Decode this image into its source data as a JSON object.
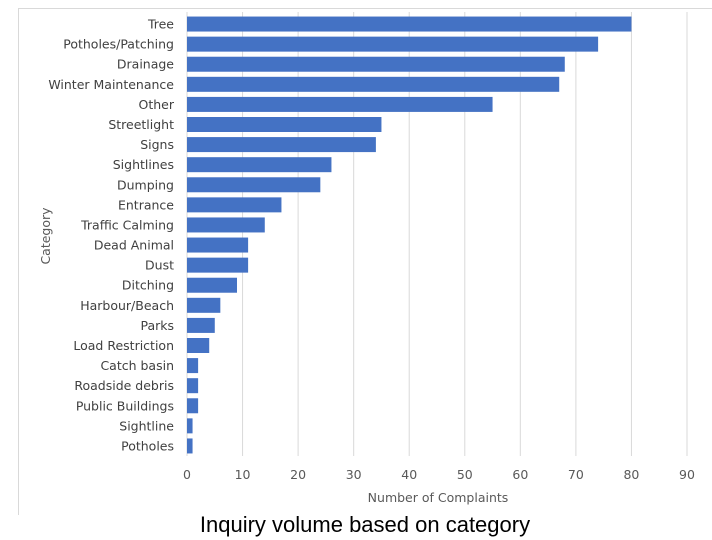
{
  "caption": "Inquiry volume based on category",
  "chart_data": {
    "type": "bar",
    "orientation": "horizontal",
    "title": "",
    "xlabel": "Number of Complaints",
    "ylabel": "Category",
    "xlim": [
      0,
      90
    ],
    "xticks": [
      0,
      10,
      20,
      30,
      40,
      50,
      60,
      70,
      80,
      90
    ],
    "grid": "vertical",
    "bar_color": "#4472c4",
    "categories": [
      "Tree",
      "Potholes/Patching",
      "Drainage",
      "Winter Maintenance",
      "Other",
      "Streetlight",
      "Signs",
      "Sightlines",
      "Dumping",
      "Entrance",
      "Traffic Calming",
      "Dead Animal",
      "Dust",
      "Ditching",
      "Harbour/Beach",
      "Parks",
      "Load Restriction",
      "Catch basin",
      "Roadside debris",
      "Public Buildings",
      "Sightline",
      "Potholes"
    ],
    "values": [
      80,
      74,
      68,
      67,
      55,
      35,
      34,
      26,
      24,
      17,
      14,
      11,
      11,
      9,
      6,
      5,
      4,
      2,
      2,
      2,
      1,
      1
    ]
  }
}
